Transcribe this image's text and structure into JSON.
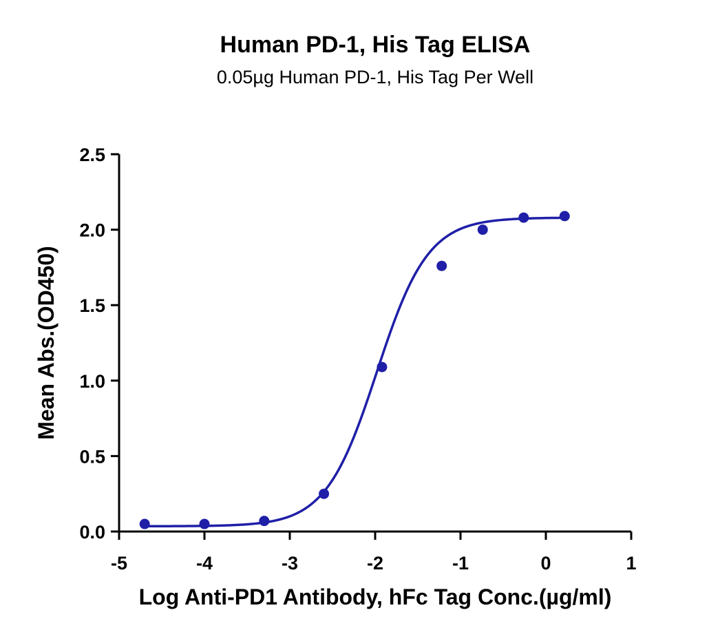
{
  "chart_data": {
    "type": "scatter",
    "title": "Human PD-1, His Tag ELISA",
    "subtitle": "0.05µg Human PD-1, His Tag Per Well",
    "xlabel": "Log Anti-PD1 Antibody, hFc Tag Conc.(µg/ml)",
    "ylabel": "Mean Abs.(OD450)",
    "xlim": [
      -5,
      1
    ],
    "ylim": [
      0,
      2.5
    ],
    "x_ticks": [
      -5,
      -4,
      -3,
      -2,
      -1,
      0,
      1
    ],
    "x_tick_labels": [
      "-5",
      "-4",
      "-3",
      "-2",
      "-1",
      "0",
      "1"
    ],
    "y_ticks": [
      0,
      0.5,
      1.0,
      1.5,
      2.0,
      2.5
    ],
    "y_tick_labels": [
      "0.0",
      "0.5",
      "1.0",
      "1.5",
      "2.0",
      "2.5"
    ],
    "grid": false,
    "series": [
      {
        "x": [
          -4.7,
          -4.0,
          -3.3,
          -2.6,
          -1.92,
          -1.22,
          -0.74,
          -0.26,
          0.22
        ],
        "y": [
          0.05,
          0.05,
          0.07,
          0.25,
          1.09,
          1.76,
          2.0,
          2.08,
          2.09
        ],
        "color": "#1f1fa8",
        "marker": "circle"
      }
    ],
    "fit_curve": {
      "type": "4PL",
      "bottom": 0.035,
      "top": 2.08,
      "log_ec50": -1.98,
      "hill_slope": 1.45,
      "x_range": [
        -4.7,
        0.22
      ],
      "color": "#1f1fa8"
    }
  }
}
